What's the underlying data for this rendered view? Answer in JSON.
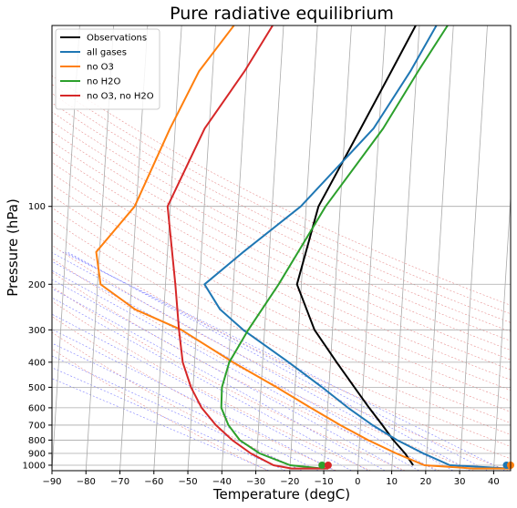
{
  "chart_data": {
    "type": "line",
    "title": "Pure radiative equilibrium",
    "xlabel": "Temperature (degC)",
    "ylabel": "Pressure (hPa)",
    "xlim": [
      -90,
      45
    ],
    "ylim": [
      1050,
      20
    ],
    "y_scale": "log",
    "x_ticks": [
      -90,
      -80,
      -70,
      -60,
      -50,
      -40,
      -30,
      -20,
      -10,
      0,
      10,
      20,
      30,
      40
    ],
    "y_ticks": [
      100,
      200,
      300,
      400,
      500,
      600,
      700,
      800,
      900,
      1000
    ],
    "legend_position": "top-left",
    "grid": "skew-T isotherms, isobars, dry and moist adiabats",
    "series": [
      {
        "name": "Observations",
        "color": "#000000",
        "points": [
          [
            8.9,
            20
          ],
          [
            2.6,
            30
          ],
          [
            -5.4,
            50
          ],
          [
            -16.4,
            100
          ],
          [
            -21.3,
            200
          ],
          [
            -15.3,
            300
          ],
          [
            -8.2,
            400
          ],
          [
            -2.5,
            500
          ],
          [
            2.2,
            600
          ],
          [
            6.4,
            700
          ],
          [
            9.9,
            800
          ],
          [
            13.6,
            900
          ],
          [
            16.2,
            1000
          ]
        ]
      },
      {
        "name": "all gases",
        "color": "#1f77b4",
        "points": [
          [
            15,
            20
          ],
          [
            8.2,
            30
          ],
          [
            -1.6,
            50
          ],
          [
            -21.6,
            100
          ],
          [
            -37.7,
            150
          ],
          [
            -48.5,
            200
          ],
          [
            -43.5,
            250
          ],
          [
            -36.3,
            300
          ],
          [
            -22.3,
            400
          ],
          [
            -12,
            500
          ],
          [
            -4,
            600
          ],
          [
            3.5,
            700
          ],
          [
            11,
            800
          ],
          [
            19,
            900
          ],
          [
            27,
            1000
          ],
          [
            44.6,
            1030
          ]
        ]
      },
      {
        "name": "no O3",
        "color": "#ff7f0e",
        "points": [
          [
            -44.6,
            20
          ],
          [
            -54,
            30
          ],
          [
            -61.5,
            50
          ],
          [
            -70.5,
            100
          ],
          [
            -81,
            150
          ],
          [
            -79.1,
            200
          ],
          [
            -68.5,
            250
          ],
          [
            -54.5,
            300
          ],
          [
            -38.7,
            400
          ],
          [
            -25.4,
            500
          ],
          [
            -15,
            600
          ],
          [
            -6,
            700
          ],
          [
            2.5,
            800
          ],
          [
            11,
            900
          ],
          [
            19.5,
            1000
          ],
          [
            34,
            1030
          ],
          [
            45.8,
            1030
          ]
        ]
      },
      {
        "name": "no H2O",
        "color": "#2ca02c",
        "points": [
          [
            18.3,
            20
          ],
          [
            10.5,
            30
          ],
          [
            1.2,
            50
          ],
          [
            -14.3,
            100
          ],
          [
            -26.7,
            200
          ],
          [
            -34.8,
            300
          ],
          [
            -39.8,
            400
          ],
          [
            -41.5,
            500
          ],
          [
            -41.3,
            600
          ],
          [
            -38.9,
            700
          ],
          [
            -35.3,
            800
          ],
          [
            -29.2,
            900
          ],
          [
            -20,
            1000
          ],
          [
            -10.5,
            1030
          ]
        ]
      },
      {
        "name": "no O3, no H2O",
        "color": "#d62728",
        "points": [
          [
            -33.2,
            20
          ],
          [
            -40.6,
            30
          ],
          [
            -51.3,
            50
          ],
          [
            -60.8,
            100
          ],
          [
            -57.1,
            200
          ],
          [
            -55.2,
            300
          ],
          [
            -53.5,
            400
          ],
          [
            -50.6,
            500
          ],
          [
            -47.1,
            600
          ],
          [
            -42.6,
            700
          ],
          [
            -37.5,
            800
          ],
          [
            -31.8,
            900
          ],
          [
            -24.9,
            1000
          ],
          [
            -19.5,
            1030
          ],
          [
            -8.7,
            1030
          ]
        ]
      }
    ],
    "surface_markers": [
      {
        "series": "no H2O",
        "color": "#2ca02c",
        "x": -10.5,
        "y": 1000
      },
      {
        "series": "no O3, no H2O",
        "color": "#d62728",
        "x": -8.7,
        "y": 1000
      },
      {
        "series": "all gases",
        "color": "#1f77b4",
        "x": 43.8,
        "y": 1000
      },
      {
        "series": "no O3",
        "color": "#ff7f0e",
        "x": 45.8,
        "y": 1000
      }
    ]
  }
}
